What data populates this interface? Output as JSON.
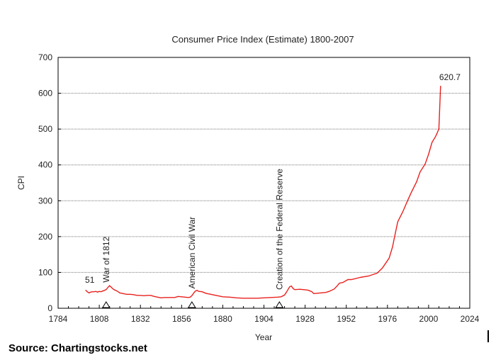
{
  "chart_data": {
    "type": "line",
    "title": "Consumer Price Index (Estimate) 1800-2007",
    "xlabel": "Year",
    "ylabel": "CPI",
    "xlim": [
      1784,
      2024
    ],
    "ylim": [
      0,
      700
    ],
    "xticks": [
      1784,
      1808,
      1832,
      1856,
      1880,
      1904,
      1928,
      1952,
      1976,
      2000,
      2024
    ],
    "yticks": [
      0,
      100,
      200,
      300,
      400,
      500,
      600,
      700
    ],
    "grid": "horizontal",
    "line_color": "#e8211e",
    "series": [
      {
        "x": [
          1800,
          1801,
          1802,
          1803,
          1804,
          1805,
          1806,
          1807,
          1808,
          1809,
          1810,
          1811,
          1812,
          1813,
          1814,
          1815,
          1816,
          1817,
          1818,
          1819,
          1820,
          1822,
          1824,
          1826,
          1828,
          1830,
          1832,
          1834,
          1836,
          1838,
          1840,
          1842,
          1844,
          1846,
          1848,
          1850,
          1852,
          1854,
          1856,
          1858,
          1860,
          1861,
          1862,
          1863,
          1864,
          1865,
          1866,
          1868,
          1870,
          1872,
          1874,
          1876,
          1878,
          1880,
          1884,
          1888,
          1892,
          1896,
          1900,
          1904,
          1908,
          1912,
          1914,
          1916,
          1917,
          1918,
          1919,
          1920,
          1921,
          1922,
          1925,
          1929,
          1930,
          1932,
          1933,
          1935,
          1940,
          1942,
          1945,
          1947,
          1948,
          1950,
          1953,
          1955,
          1960,
          1965,
          1970,
          1973,
          1975,
          1977,
          1979,
          1980,
          1982,
          1985,
          1988,
          1990,
          1993,
          1995,
          1998,
          2000,
          2002,
          2004,
          2005,
          2006,
          2007
        ],
        "y": [
          51,
          46,
          43,
          45,
          46,
          46,
          47,
          45,
          47,
          46,
          48,
          50,
          52,
          58,
          63,
          59,
          54,
          51,
          49,
          46,
          43,
          41,
          39,
          39,
          38,
          36,
          36,
          35,
          36,
          36,
          33,
          31,
          29,
          30,
          30,
          30,
          30,
          33,
          32,
          31,
          30,
          31,
          35,
          42,
          48,
          50,
          47,
          46,
          42,
          40,
          38,
          36,
          34,
          32,
          31,
          29,
          28,
          28,
          28,
          29,
          30,
          31,
          32,
          37,
          44,
          52,
          60,
          62,
          55,
          52,
          53,
          51,
          50,
          46,
          41,
          42,
          44,
          47,
          54,
          64,
          70,
          72,
          80,
          80,
          86,
          90,
          98,
          112,
          126,
          140,
          172,
          196,
          241,
          270,
          303,
          324,
          353,
          380,
          403,
          430,
          463,
          479,
          489,
          501,
          620.7
        ]
      }
    ],
    "data_labels": {
      "start": "51",
      "end": "620.7"
    },
    "events": [
      {
        "label": "War of 1812",
        "year": 1812
      },
      {
        "label": "American Civil War",
        "year": 1862
      },
      {
        "label": "Creation of the Federal Reserve",
        "year": 1913
      }
    ]
  },
  "source_label": "Source: Chartingstocks.net"
}
